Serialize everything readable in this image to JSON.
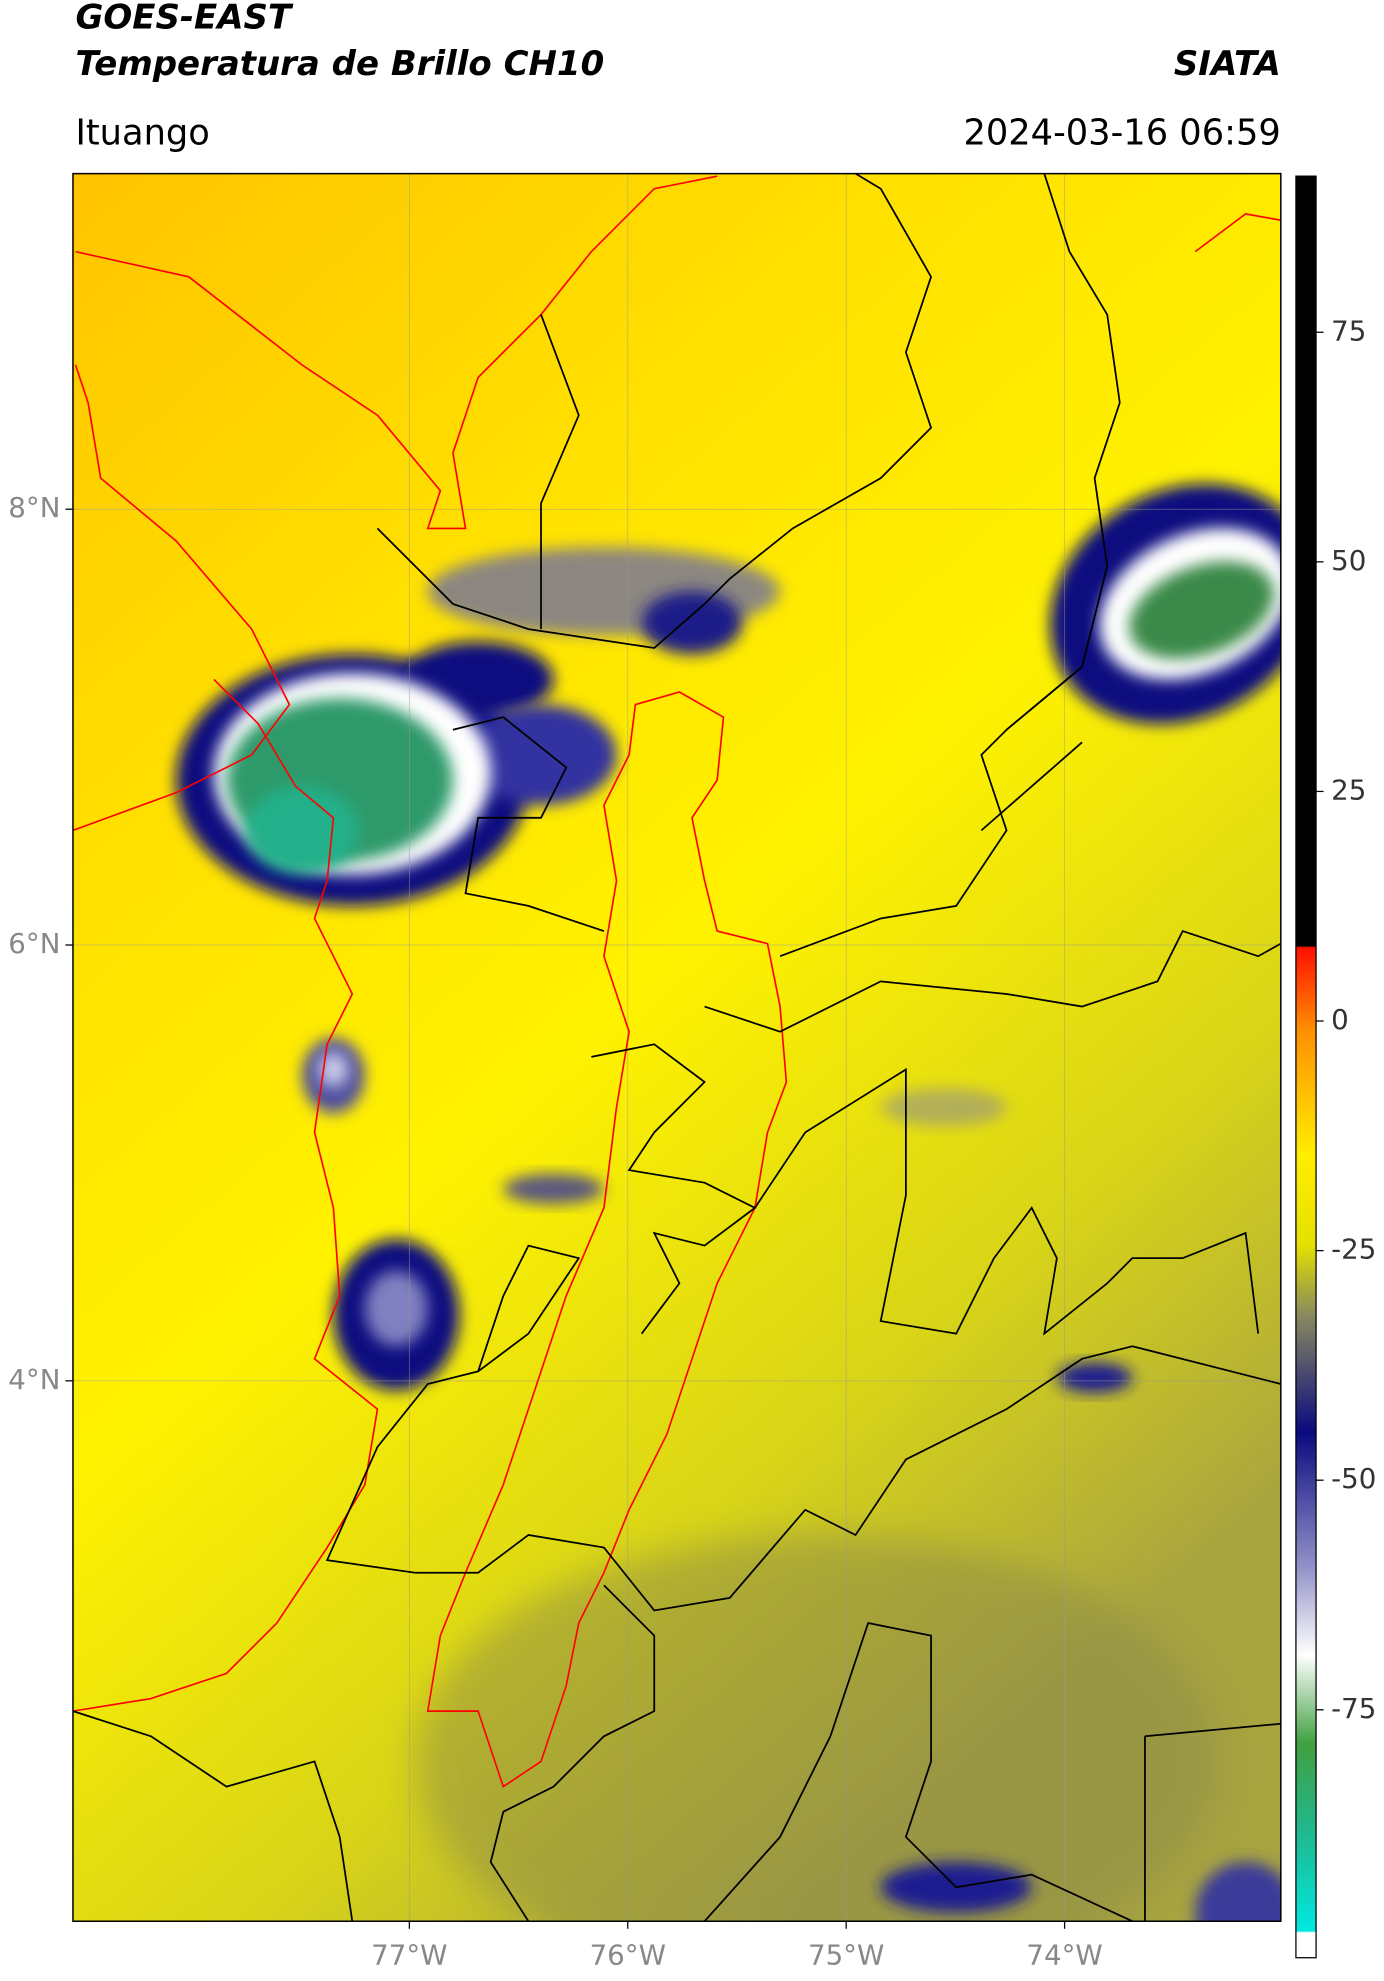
{
  "header": {
    "title": "GOES-EAST",
    "subtitle": "Temperatura de Brillo CH10",
    "organization": "SIATA",
    "region": "Ituango",
    "timestamp": "2024-03-16 06:59"
  },
  "map": {
    "xlim": [
      -78.54,
      -73.01
    ],
    "ylim": [
      1.52,
      9.54
    ],
    "xticks": [
      {
        "value": -77,
        "label": "77°W"
      },
      {
        "value": -76,
        "label": "76°W"
      },
      {
        "value": -75,
        "label": "75°W"
      },
      {
        "value": -74,
        "label": "74°W"
      }
    ],
    "yticks": [
      {
        "value": 8,
        "label": "8°N"
      },
      {
        "value": 6,
        "label": "6°N"
      },
      {
        "value": 4,
        "label": "4°N"
      }
    ],
    "grid": true
  },
  "colorbar": {
    "range": [
      -102,
      92
    ],
    "ticks": [
      75,
      50,
      25,
      0,
      -25,
      -50,
      -75
    ]
  }
}
